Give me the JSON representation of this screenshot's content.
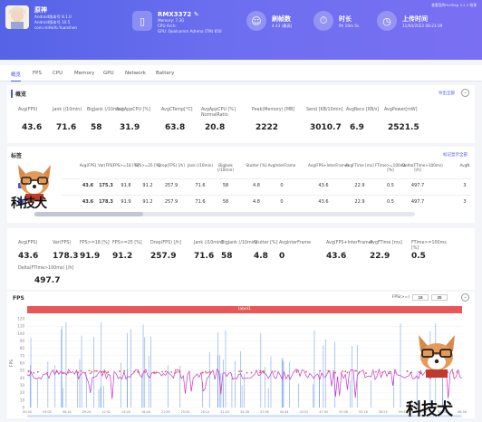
{
  "header": {
    "app_name": "原神",
    "app_lines": [
      "Android版本号 8.1.0",
      "Android版本号 10.5",
      "com.miHoYo.Yuanshen"
    ],
    "device_name": "RMX3372",
    "device_lines": [
      "Memory: 7.3G",
      "CPU Arch:",
      "GPU: Qualcomm Adreno (TM) 650"
    ],
    "tag1_title": "刷帧数",
    "tag1_sub": "4.43 (最高)",
    "dur_title": "时长",
    "dur_sub": "9h 10m 5s",
    "date_title": "上传时间",
    "date_sub": "11/04/2022 08:23:39",
    "top_link": "查看我的PerfDog 3.2.2 结果"
  },
  "tabs": [
    "概览",
    "FPS",
    "CPU",
    "Memory",
    "GPU",
    "Network",
    "Battery"
  ],
  "overview": {
    "title": "概览",
    "link": "导出全部",
    "metrics": [
      {
        "label": "Avg(FPS)",
        "value": "43.6"
      },
      {
        "label": "Jank (/10min)",
        "value": "71.6"
      },
      {
        "label": "BigJank (/10min)",
        "value": "58"
      },
      {
        "label": "AvgAppCPU [%]",
        "value": "31.9"
      },
      {
        "label": "AvgCTemp[°C]",
        "value": "63.8"
      },
      {
        "label": "AvgAppCPU [%] NormalRatio",
        "value": "20.8"
      },
      {
        "label": "Peak(Memory) [MB]",
        "value": "2222"
      },
      {
        "label": "Send [KB/10min]",
        "value": "3010.7"
      },
      {
        "label": "AvgRecv [KB/s]",
        "value": "6.9"
      },
      {
        "label": "AvgPower[mW]",
        "value": "2521.5"
      }
    ]
  },
  "label_table": {
    "title": "标签",
    "link": "标记显示全部",
    "headers": [
      "Avg(FPS)",
      "Var(FPS)",
      "FPS>=18 [%]",
      "FPS>=25 [%]",
      "Drop(FPS) [/h]",
      "Jank (/10min)",
      "BigJank (/10min)",
      "Stutter [%]",
      "AvgInterFrame",
      "Avg(FPS+InterFrame)",
      "AvgFTime [ms]",
      "FTime>=100ms [%]",
      "Delta(FTime>100ms) [/h]",
      "AvgN"
    ],
    "rows": [
      [
        "43.6",
        "175.3",
        "91.8",
        "91.2",
        "257.9",
        "71.6",
        "58",
        "4.8",
        "0",
        "43.6",
        "22.9",
        "0.5",
        "497.7",
        "3"
      ],
      [
        "43.6",
        "178.3",
        "91.9",
        "91.2",
        "257.9",
        "71.6",
        "58",
        "4.8",
        "0",
        "43.6",
        "22.9",
        "0.5",
        "497.7",
        "3"
      ]
    ]
  },
  "summary": {
    "items": [
      {
        "label": "Avg(FPS)",
        "value": "43.6"
      },
      {
        "label": "Var(FPS)",
        "value": "178.3"
      },
      {
        "label": "FPS>=18 [%]",
        "value": "91.9"
      },
      {
        "label": "FPS>=25 [%]",
        "value": "91.2"
      },
      {
        "label": "Drop(FPS) [/h]",
        "value": "257.9"
      },
      {
        "label": "Jank (/10min)",
        "value": "71.6"
      },
      {
        "label": "BigJank (/10min)",
        "value": "58"
      },
      {
        "label": "Stutter [%]",
        "value": "4.8"
      },
      {
        "label": "AvgInterFrame",
        "value": "0"
      },
      {
        "label": "Avg(FPS+InterFrame)",
        "value": "43.6"
      },
      {
        "label": "AvgFTime [ms]",
        "value": "22.9"
      },
      {
        "label": "FTime>=100ms [%]",
        "value": "0.5"
      }
    ],
    "extra_label": "Delta(FTime>100ms) [/h]",
    "extra_value": "497.7"
  },
  "fps_chart": {
    "title": "FPS",
    "fps_label": "FPS(>=)",
    "fps_in1": "18",
    "fps_in2": "25",
    "banner": "label1",
    "ylabel": "FPS",
    "yticks": [
      "120",
      "110",
      "100",
      "90",
      "80",
      "70",
      "60",
      "50",
      "40",
      "30",
      "20",
      "10",
      "0"
    ],
    "xticks": [
      "00:00",
      "03:08",
      "06:16",
      "09:24",
      "12:32",
      "15:40",
      "18:48",
      "21:56",
      "25:04",
      "28:12",
      "31:20",
      "34:28",
      "37:36",
      "40:44",
      "43:52",
      "47:00",
      "50:08",
      "53:16",
      "56:24",
      "59:32",
      "62:40",
      "65:48",
      "68:56"
    ],
    "legend": [
      "FPS",
      "Jank",
      "BigJank",
      "Stutter",
      "InterFrame"
    ],
    "colors": {
      "fps": "#c531c8",
      "jank": "#e05a5a",
      "bigjank": "#5c8de0",
      "stutter": "#f0b42e",
      "interframe": "#63c49a"
    }
  },
  "watermark": "科技犬"
}
